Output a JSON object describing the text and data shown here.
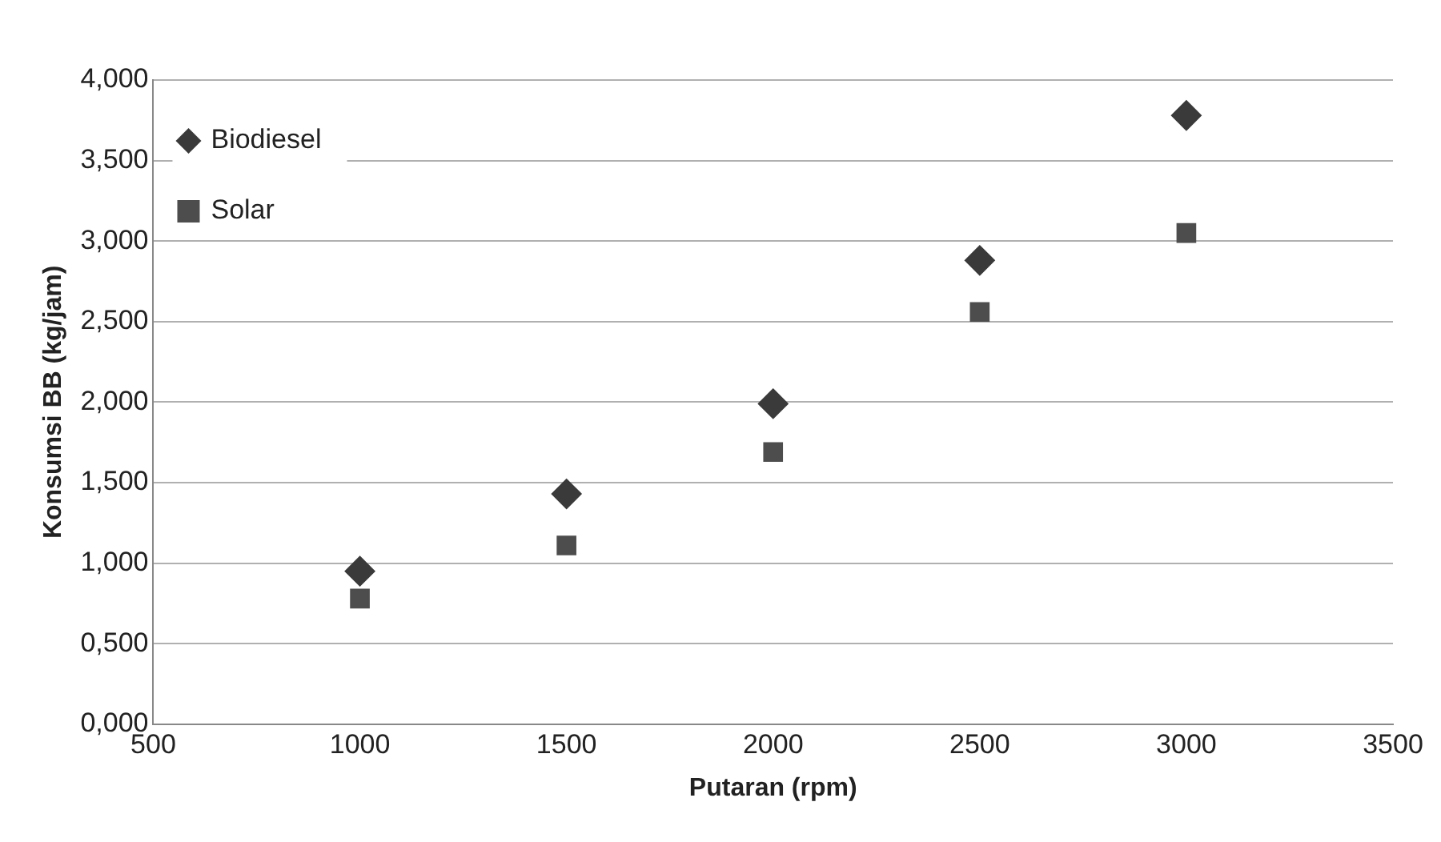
{
  "chart_data": {
    "type": "scatter",
    "xlabel": "Putaran (rpm)",
    "ylabel": "Konsumsi BB (kg/jam)",
    "x": [
      1000,
      1500,
      2000,
      2500,
      3000
    ],
    "series": [
      {
        "name": "Biodiesel",
        "color": "#3a3a3a",
        "marker": "diamond",
        "values": [
          0.95,
          1.43,
          1.99,
          2.88,
          3.78
        ]
      },
      {
        "name": "Solar",
        "color": "#4d4d4d",
        "marker": "square",
        "values": [
          0.78,
          1.11,
          1.69,
          2.56,
          3.05
        ]
      }
    ],
    "xlim": [
      500,
      3500
    ],
    "xticks": [
      500,
      1000,
      1500,
      2000,
      2500,
      3000,
      3500
    ],
    "ylim": [
      0,
      4
    ],
    "yticks": [
      {
        "value": 0,
        "label": "0,000"
      },
      {
        "value": 0.5,
        "label": "0,500"
      },
      {
        "value": 1,
        "label": "1,000"
      },
      {
        "value": 1.5,
        "label": "1,500"
      },
      {
        "value": 2,
        "label": "2,000"
      },
      {
        "value": 2.5,
        "label": "2,500"
      },
      {
        "value": 3,
        "label": "3,000"
      },
      {
        "value": 3.5,
        "label": "3,500"
      },
      {
        "value": 4,
        "label": "4,000"
      }
    ],
    "grid": "y",
    "legend": "top left"
  }
}
